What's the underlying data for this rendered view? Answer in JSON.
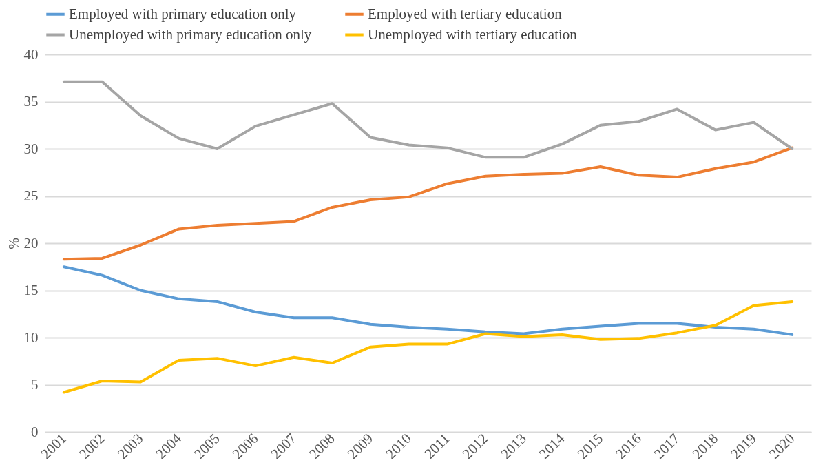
{
  "chart_data": {
    "type": "line",
    "ylabel": "%",
    "categories": [
      "2001",
      "2002",
      "2003",
      "2004",
      "2005",
      "2006",
      "2007",
      "2008",
      "2009",
      "2010",
      "2011",
      "2012",
      "2013",
      "2014",
      "2015",
      "2016",
      "2017",
      "2018",
      "2019",
      "2020"
    ],
    "ylim": [
      0,
      40
    ],
    "yticks": [
      0,
      5,
      10,
      15,
      20,
      25,
      30,
      35,
      40
    ],
    "grid": "y",
    "legend": "top",
    "line_style": "solid",
    "marker": "none",
    "series": [
      {
        "name": "Employed with primary education only",
        "color": "#5b9bd5",
        "values": [
          17.5,
          16.6,
          15.0,
          14.1,
          13.8,
          12.7,
          12.1,
          12.1,
          11.4,
          11.1,
          10.9,
          10.6,
          10.4,
          10.9,
          11.2,
          11.5,
          11.5,
          11.1,
          10.9,
          10.3
        ]
      },
      {
        "name": "Employed with tertiary education",
        "color": "#ed7d31",
        "values": [
          18.3,
          18.4,
          19.8,
          21.5,
          21.9,
          22.1,
          22.3,
          23.8,
          24.6,
          24.9,
          26.3,
          27.1,
          27.3,
          27.4,
          28.1,
          27.2,
          27.0,
          27.9,
          28.6,
          30.1
        ]
      },
      {
        "name": "Unemployed with primary education only",
        "color": "#a5a5a5",
        "values": [
          37.1,
          37.1,
          33.5,
          31.1,
          30.0,
          32.4,
          33.6,
          34.8,
          31.2,
          30.4,
          30.1,
          29.1,
          29.1,
          30.5,
          32.5,
          32.9,
          34.2,
          32.0,
          32.8,
          30.0
        ]
      },
      {
        "name": "Unemployed with tertiary education",
        "color": "#ffc000",
        "values": [
          4.2,
          5.4,
          5.3,
          7.6,
          7.8,
          7.0,
          7.9,
          7.3,
          9.0,
          9.3,
          9.3,
          10.4,
          10.1,
          10.3,
          9.8,
          9.9,
          10.5,
          11.3,
          13.4,
          13.8
        ]
      }
    ]
  }
}
